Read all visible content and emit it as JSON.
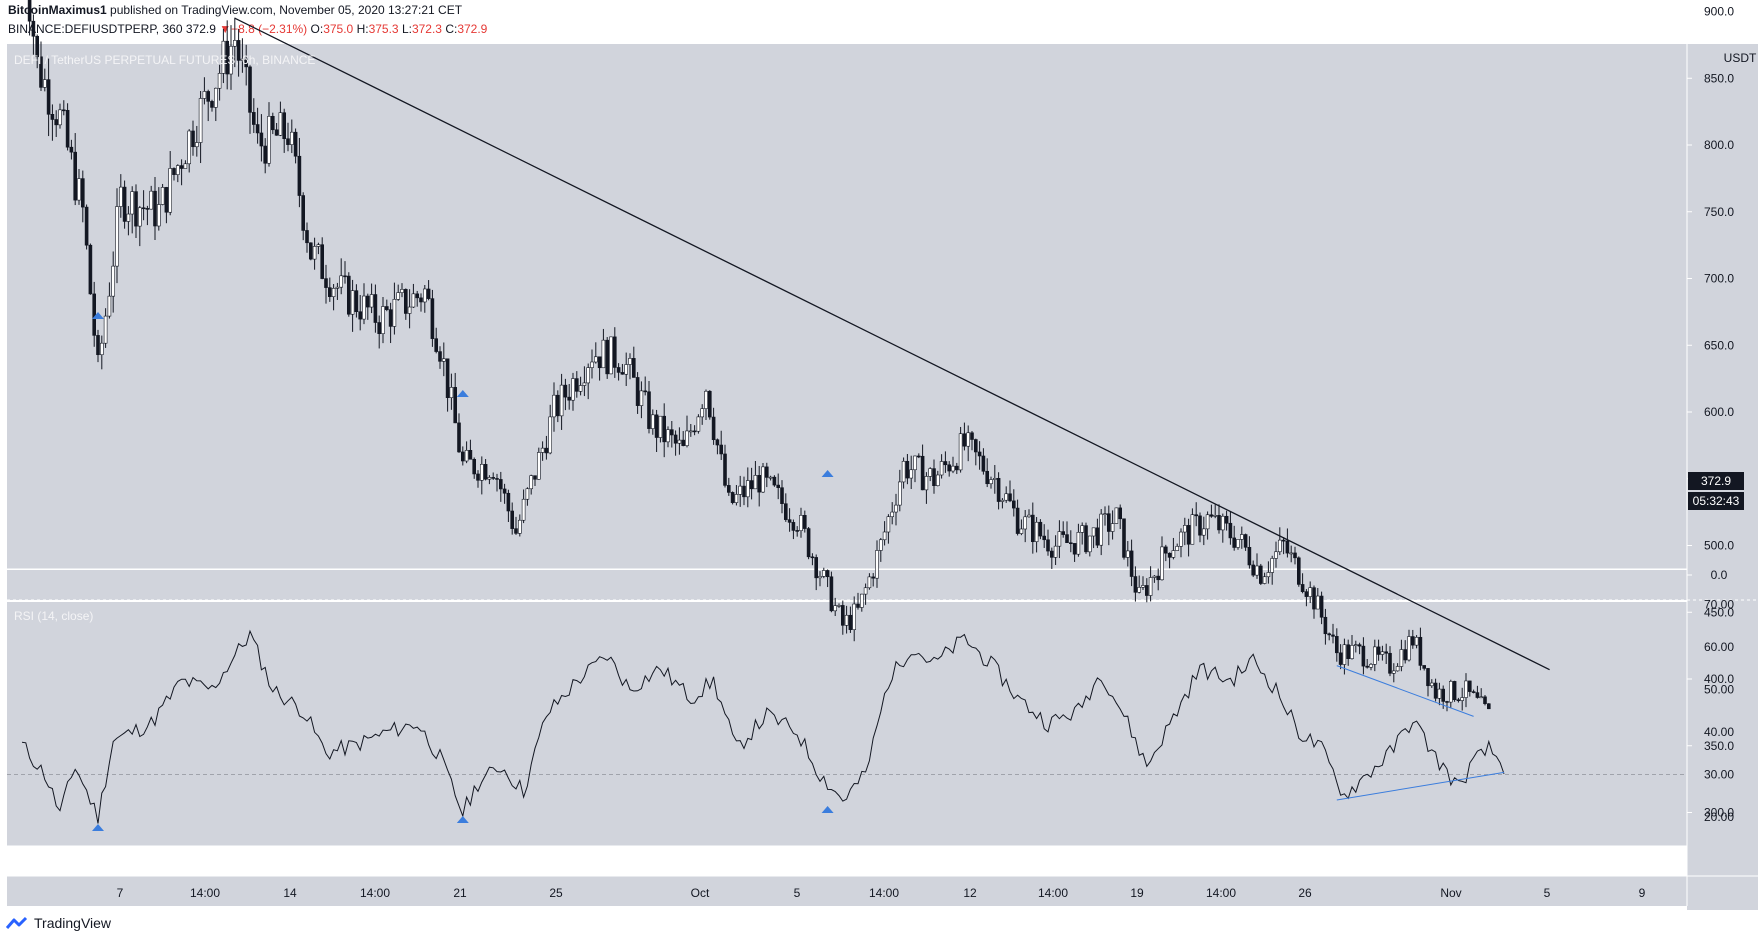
{
  "header": {
    "author": "BitcoinMaximus1",
    "published": "published on TradingView.com, November 05, 2020 13:27:21 CET",
    "symbol": "BINANCE:DEFIUSDTPERP, 360",
    "last": "372.9",
    "arrow": "▼",
    "change": "−8.8 (−2.31%)",
    "o_label": "O:",
    "o": "375.0",
    "h_label": "H:",
    "h": "375.3",
    "l_label": "L:",
    "l": "372.3",
    "c_label": "C:",
    "c": "372.9"
  },
  "footer": {
    "brand": "TradingView"
  },
  "colors": {
    "pane_bg": "#d1d4dc",
    "candle_up_body": "#ffffff",
    "candle_down_body": "#131722",
    "trendline": "#131722",
    "support_line": "#3b7ddd",
    "marker": "#3b7ddd",
    "price_label_bg": "#131722"
  },
  "chart_data": [
    {
      "type": "candlestick",
      "title": "DEFI / TetherUS PERPETUAL FUTURES, 6h, BINANCE",
      "currency_label": "USDT",
      "ylim": [
        0,
        950
      ],
      "y_ticks": [
        "900.0",
        "850.0",
        "800.0",
        "750.0",
        "700.0",
        "650.0",
        "600.0",
        "550.0",
        "500.0",
        "450.0",
        "400.0",
        "350.0",
        "300.0",
        "0.0"
      ],
      "price_label": "372.9",
      "countdown_label": "05:32:43",
      "x_tick_labels": [
        "7",
        "14:00",
        "14",
        "14:00",
        "21",
        "25",
        "Oct",
        "5",
        "14:00",
        "12",
        "14:00",
        "19",
        "14:00",
        "26",
        "Nov",
        "5",
        "9"
      ],
      "close_path": [
        {
          "i": 0,
          "close": 960
        },
        {
          "i": 4,
          "close": 860
        },
        {
          "i": 10,
          "close": 820
        },
        {
          "i": 16,
          "close": 750
        },
        {
          "i": 20,
          "close": 630
        },
        {
          "i": 26,
          "close": 760
        },
        {
          "i": 36,
          "close": 750
        },
        {
          "i": 46,
          "close": 820
        },
        {
          "i": 56,
          "close": 880
        },
        {
          "i": 62,
          "close": 800
        },
        {
          "i": 70,
          "close": 810
        },
        {
          "i": 76,
          "close": 720
        },
        {
          "i": 84,
          "close": 690
        },
        {
          "i": 94,
          "close": 670
        },
        {
          "i": 106,
          "close": 690
        },
        {
          "i": 110,
          "close": 650
        },
        {
          "i": 116,
          "close": 560
        },
        {
          "i": 124,
          "close": 560
        },
        {
          "i": 130,
          "close": 510
        },
        {
          "i": 140,
          "close": 600
        },
        {
          "i": 150,
          "close": 645
        },
        {
          "i": 158,
          "close": 640
        },
        {
          "i": 166,
          "close": 590
        },
        {
          "i": 174,
          "close": 570
        },
        {
          "i": 180,
          "close": 620
        },
        {
          "i": 186,
          "close": 530
        },
        {
          "i": 194,
          "close": 550
        },
        {
          "i": 204,
          "close": 520
        },
        {
          "i": 210,
          "close": 480
        },
        {
          "i": 216,
          "close": 440
        },
        {
          "i": 220,
          "close": 450
        },
        {
          "i": 226,
          "close": 500
        },
        {
          "i": 232,
          "close": 560
        },
        {
          "i": 240,
          "close": 550
        },
        {
          "i": 248,
          "close": 575
        },
        {
          "i": 256,
          "close": 550
        },
        {
          "i": 262,
          "close": 520
        },
        {
          "i": 272,
          "close": 500
        },
        {
          "i": 280,
          "close": 505
        },
        {
          "i": 288,
          "close": 520
        },
        {
          "i": 294,
          "close": 460
        },
        {
          "i": 302,
          "close": 500
        },
        {
          "i": 312,
          "close": 520
        },
        {
          "i": 320,
          "close": 505
        },
        {
          "i": 326,
          "close": 480
        },
        {
          "i": 332,
          "close": 500
        },
        {
          "i": 340,
          "close": 460
        },
        {
          "i": 346,
          "close": 420
        },
        {
          "i": 352,
          "close": 420
        },
        {
          "i": 360,
          "close": 410
        },
        {
          "i": 366,
          "close": 430
        },
        {
          "i": 372,
          "close": 390
        },
        {
          "i": 380,
          "close": 390
        },
        {
          "i": 386,
          "close": 373
        }
      ],
      "annotations": {
        "resistance_line": {
          "from": {
            "i": 56,
            "price": 895
          },
          "to": {
            "i": 402,
            "price": 407
          }
        },
        "support_line": {
          "from": {
            "i": 346,
            "price": 410
          },
          "to": {
            "i": 382,
            "price": 372
          }
        },
        "swing_low_markers": [
          {
            "i": 20
          },
          {
            "i": 116
          },
          {
            "i": 212
          }
        ]
      }
    },
    {
      "type": "line",
      "title": "RSI (14, close)",
      "ylim": [
        10,
        73
      ],
      "y_ticks": [
        "70.00",
        "60.00",
        "50.00",
        "40.00",
        "30.00",
        "20.00"
      ],
      "reference_level": 30,
      "rsi_path": [
        {
          "i": 0,
          "v": 37
        },
        {
          "i": 6,
          "v": 30
        },
        {
          "i": 10,
          "v": 21
        },
        {
          "i": 14,
          "v": 32
        },
        {
          "i": 20,
          "v": 20
        },
        {
          "i": 24,
          "v": 38
        },
        {
          "i": 34,
          "v": 42
        },
        {
          "i": 42,
          "v": 52
        },
        {
          "i": 50,
          "v": 50
        },
        {
          "i": 56,
          "v": 58
        },
        {
          "i": 60,
          "v": 63
        },
        {
          "i": 66,
          "v": 50
        },
        {
          "i": 74,
          "v": 45
        },
        {
          "i": 80,
          "v": 35
        },
        {
          "i": 88,
          "v": 37
        },
        {
          "i": 96,
          "v": 40
        },
        {
          "i": 104,
          "v": 42
        },
        {
          "i": 110,
          "v": 34
        },
        {
          "i": 116,
          "v": 21
        },
        {
          "i": 120,
          "v": 28
        },
        {
          "i": 126,
          "v": 32
        },
        {
          "i": 132,
          "v": 26
        },
        {
          "i": 138,
          "v": 44
        },
        {
          "i": 146,
          "v": 52
        },
        {
          "i": 154,
          "v": 58
        },
        {
          "i": 160,
          "v": 50
        },
        {
          "i": 168,
          "v": 55
        },
        {
          "i": 176,
          "v": 48
        },
        {
          "i": 182,
          "v": 52
        },
        {
          "i": 188,
          "v": 36
        },
        {
          "i": 196,
          "v": 44
        },
        {
          "i": 204,
          "v": 40
        },
        {
          "i": 210,
          "v": 30
        },
        {
          "i": 216,
          "v": 24
        },
        {
          "i": 222,
          "v": 30
        },
        {
          "i": 228,
          "v": 52
        },
        {
          "i": 234,
          "v": 60
        },
        {
          "i": 240,
          "v": 56
        },
        {
          "i": 248,
          "v": 62
        },
        {
          "i": 256,
          "v": 55
        },
        {
          "i": 262,
          "v": 48
        },
        {
          "i": 270,
          "v": 42
        },
        {
          "i": 278,
          "v": 45
        },
        {
          "i": 284,
          "v": 54
        },
        {
          "i": 290,
          "v": 44
        },
        {
          "i": 296,
          "v": 32
        },
        {
          "i": 304,
          "v": 45
        },
        {
          "i": 310,
          "v": 55
        },
        {
          "i": 318,
          "v": 52
        },
        {
          "i": 324,
          "v": 57
        },
        {
          "i": 330,
          "v": 50
        },
        {
          "i": 336,
          "v": 40
        },
        {
          "i": 342,
          "v": 36
        },
        {
          "i": 348,
          "v": 25
        },
        {
          "i": 354,
          "v": 30
        },
        {
          "i": 360,
          "v": 35
        },
        {
          "i": 366,
          "v": 43
        },
        {
          "i": 372,
          "v": 34
        },
        {
          "i": 378,
          "v": 27
        },
        {
          "i": 382,
          "v": 33
        },
        {
          "i": 386,
          "v": 36
        },
        {
          "i": 390,
          "v": 32
        }
      ],
      "annotations": {
        "divergence_line": {
          "from": {
            "i": 346,
            "v": 24
          },
          "to": {
            "i": 390,
            "v": 30.5
          }
        },
        "low_markers": [
          {
            "i": 20
          },
          {
            "i": 116
          },
          {
            "i": 212
          }
        ]
      }
    }
  ]
}
